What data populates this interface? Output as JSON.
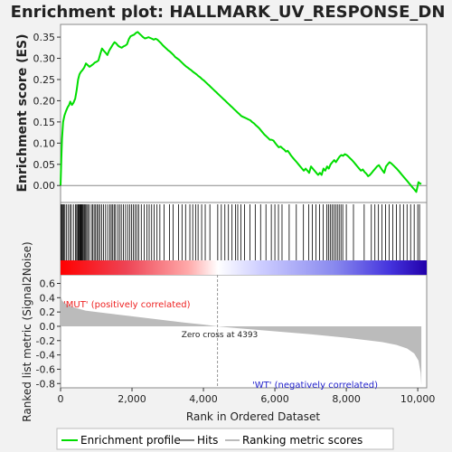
{
  "chart_data": {
    "type": "line",
    "title": "Enrichment plot: HALLMARK_UV_RESPONSE_DN",
    "xlabel": "Rank in Ordered Dataset",
    "es_panel": {
      "ylabel": "Enrichment score (ES)",
      "ylim": [
        -0.04,
        0.38
      ],
      "yticks": [
        0.0,
        0.05,
        0.1,
        0.15,
        0.2,
        0.25,
        0.3,
        0.35
      ],
      "series_name": "Enrichment profile",
      "line_color": "#00dd00",
      "points": [
        [
          0,
          0.0
        ],
        [
          20,
          0.06
        ],
        [
          40,
          0.11
        ],
        [
          70,
          0.15
        ],
        [
          110,
          0.165
        ],
        [
          150,
          0.175
        ],
        [
          200,
          0.185
        ],
        [
          240,
          0.19
        ],
        [
          270,
          0.198
        ],
        [
          320,
          0.19
        ],
        [
          360,
          0.195
        ],
        [
          410,
          0.205
        ],
        [
          450,
          0.225
        ],
        [
          490,
          0.25
        ],
        [
          530,
          0.262
        ],
        [
          570,
          0.268
        ],
        [
          610,
          0.272
        ],
        [
          660,
          0.278
        ],
        [
          710,
          0.288
        ],
        [
          760,
          0.284
        ],
        [
          810,
          0.28
        ],
        [
          860,
          0.283
        ],
        [
          910,
          0.286
        ],
        [
          960,
          0.29
        ],
        [
          1010,
          0.292
        ],
        [
          1060,
          0.295
        ],
        [
          1110,
          0.31
        ],
        [
          1160,
          0.323
        ],
        [
          1210,
          0.318
        ],
        [
          1260,
          0.313
        ],
        [
          1310,
          0.308
        ],
        [
          1360,
          0.318
        ],
        [
          1410,
          0.325
        ],
        [
          1460,
          0.332
        ],
        [
          1510,
          0.338
        ],
        [
          1560,
          0.335
        ],
        [
          1610,
          0.33
        ],
        [
          1660,
          0.327
        ],
        [
          1710,
          0.325
        ],
        [
          1760,
          0.328
        ],
        [
          1810,
          0.33
        ],
        [
          1860,
          0.333
        ],
        [
          1910,
          0.345
        ],
        [
          1960,
          0.352
        ],
        [
          2010,
          0.354
        ],
        [
          2060,
          0.356
        ],
        [
          2110,
          0.36
        ],
        [
          2160,
          0.362
        ],
        [
          2210,
          0.358
        ],
        [
          2260,
          0.354
        ],
        [
          2310,
          0.35
        ],
        [
          2360,
          0.347
        ],
        [
          2410,
          0.348
        ],
        [
          2460,
          0.35
        ],
        [
          2510,
          0.348
        ],
        [
          2560,
          0.346
        ],
        [
          2610,
          0.344
        ],
        [
          2660,
          0.346
        ],
        [
          2710,
          0.344
        ],
        [
          2760,
          0.34
        ],
        [
          2810,
          0.336
        ],
        [
          2860,
          0.331
        ],
        [
          2910,
          0.327
        ],
        [
          2960,
          0.323
        ],
        [
          3010,
          0.319
        ],
        [
          3060,
          0.316
        ],
        [
          3110,
          0.312
        ],
        [
          3160,
          0.308
        ],
        [
          3210,
          0.303
        ],
        [
          3260,
          0.3
        ],
        [
          3310,
          0.297
        ],
        [
          3360,
          0.293
        ],
        [
          3410,
          0.289
        ],
        [
          3460,
          0.285
        ],
        [
          3510,
          0.281
        ],
        [
          3560,
          0.278
        ],
        [
          3610,
          0.275
        ],
        [
          3660,
          0.272
        ],
        [
          3710,
          0.268
        ],
        [
          3760,
          0.265
        ],
        [
          3810,
          0.262
        ],
        [
          3860,
          0.258
        ],
        [
          3910,
          0.255
        ],
        [
          3960,
          0.251
        ],
        [
          4010,
          0.248
        ],
        [
          4060,
          0.244
        ],
        [
          4110,
          0.24
        ],
        [
          4160,
          0.236
        ],
        [
          4210,
          0.232
        ],
        [
          4260,
          0.228
        ],
        [
          4310,
          0.224
        ],
        [
          4360,
          0.22
        ],
        [
          4410,
          0.216
        ],
        [
          4460,
          0.212
        ],
        [
          4510,
          0.208
        ],
        [
          4560,
          0.204
        ],
        [
          4610,
          0.2
        ],
        [
          4660,
          0.196
        ],
        [
          4710,
          0.192
        ],
        [
          4760,
          0.188
        ],
        [
          4810,
          0.184
        ],
        [
          4860,
          0.18
        ],
        [
          4910,
          0.176
        ],
        [
          4960,
          0.172
        ],
        [
          5010,
          0.168
        ],
        [
          5060,
          0.164
        ],
        [
          5110,
          0.162
        ],
        [
          5160,
          0.16
        ],
        [
          5210,
          0.158
        ],
        [
          5260,
          0.156
        ],
        [
          5310,
          0.154
        ],
        [
          5360,
          0.15
        ],
        [
          5410,
          0.147
        ],
        [
          5460,
          0.143
        ],
        [
          5510,
          0.139
        ],
        [
          5560,
          0.135
        ],
        [
          5610,
          0.13
        ],
        [
          5660,
          0.125
        ],
        [
          5710,
          0.12
        ],
        [
          5760,
          0.116
        ],
        [
          5810,
          0.112
        ],
        [
          5860,
          0.108
        ],
        [
          5910,
          0.108
        ],
        [
          5960,
          0.106
        ],
        [
          6010,
          0.1
        ],
        [
          6060,
          0.095
        ],
        [
          6110,
          0.09
        ],
        [
          6160,
          0.092
        ],
        [
          6210,
          0.088
        ],
        [
          6260,
          0.085
        ],
        [
          6310,
          0.08
        ],
        [
          6360,
          0.082
        ],
        [
          6410,
          0.076
        ],
        [
          6460,
          0.07
        ],
        [
          6510,
          0.065
        ],
        [
          6560,
          0.06
        ],
        [
          6610,
          0.055
        ],
        [
          6660,
          0.05
        ],
        [
          6710,
          0.045
        ],
        [
          6760,
          0.04
        ],
        [
          6810,
          0.035
        ],
        [
          6860,
          0.04
        ],
        [
          6910,
          0.035
        ],
        [
          6960,
          0.03
        ],
        [
          7010,
          0.045
        ],
        [
          7060,
          0.04
        ],
        [
          7110,
          0.035
        ],
        [
          7160,
          0.03
        ],
        [
          7210,
          0.025
        ],
        [
          7260,
          0.03
        ],
        [
          7310,
          0.025
        ],
        [
          7360,
          0.04
        ],
        [
          7410,
          0.035
        ],
        [
          7460,
          0.045
        ],
        [
          7510,
          0.04
        ],
        [
          7560,
          0.05
        ],
        [
          7610,
          0.055
        ],
        [
          7660,
          0.06
        ],
        [
          7710,
          0.055
        ],
        [
          7760,
          0.062
        ],
        [
          7810,
          0.068
        ],
        [
          7860,
          0.072
        ],
        [
          7910,
          0.07
        ],
        [
          7960,
          0.074
        ],
        [
          8010,
          0.072
        ],
        [
          8060,
          0.068
        ],
        [
          8110,
          0.064
        ],
        [
          8160,
          0.06
        ],
        [
          8210,
          0.055
        ],
        [
          8260,
          0.05
        ],
        [
          8310,
          0.045
        ],
        [
          8360,
          0.04
        ],
        [
          8410,
          0.035
        ],
        [
          8460,
          0.038
        ],
        [
          8510,
          0.032
        ],
        [
          8560,
          0.028
        ],
        [
          8610,
          0.022
        ],
        [
          8660,
          0.025
        ],
        [
          8710,
          0.03
        ],
        [
          8760,
          0.035
        ],
        [
          8810,
          0.04
        ],
        [
          8860,
          0.045
        ],
        [
          8910,
          0.048
        ],
        [
          8960,
          0.042
        ],
        [
          9010,
          0.036
        ],
        [
          9060,
          0.03
        ],
        [
          9110,
          0.045
        ],
        [
          9160,
          0.05
        ],
        [
          9210,
          0.055
        ],
        [
          9260,
          0.052
        ],
        [
          9310,
          0.048
        ],
        [
          9360,
          0.044
        ],
        [
          9410,
          0.04
        ],
        [
          9460,
          0.035
        ],
        [
          9510,
          0.03
        ],
        [
          9560,
          0.025
        ],
        [
          9610,
          0.02
        ],
        [
          9660,
          0.015
        ],
        [
          9710,
          0.01
        ],
        [
          9760,
          0.005
        ],
        [
          9810,
          0.0
        ],
        [
          9860,
          -0.005
        ],
        [
          9910,
          -0.01
        ],
        [
          9960,
          -0.015
        ],
        [
          10000,
          0.0
        ],
        [
          10020,
          0.008
        ],
        [
          10060,
          0.005
        ],
        [
          10100,
          0.004
        ]
      ]
    },
    "hits_panel": {
      "series_name": "Hits",
      "hit_ranks": [
        15,
        35,
        60,
        90,
        120,
        160,
        210,
        260,
        300,
        360,
        420,
        450,
        480,
        500,
        520,
        540,
        560,
        580,
        600,
        620,
        640,
        670,
        700,
        730,
        760,
        800,
        860,
        900,
        940,
        980,
        1020,
        1060,
        1100,
        1150,
        1200,
        1260,
        1320,
        1380,
        1420,
        1460,
        1500,
        1540,
        1600,
        1650,
        1700,
        1760,
        1820,
        1880,
        1940,
        1990,
        2040,
        2090,
        2140,
        2190,
        2260,
        2340,
        2420,
        2480,
        2550,
        2620,
        2700,
        2780,
        2900,
        3050,
        3150,
        3300,
        3400,
        3500,
        3620,
        3700,
        3780,
        3850,
        3950,
        4050,
        4180,
        4400,
        4500,
        4600,
        4700,
        4800,
        4900,
        4960,
        5050,
        5150,
        5300,
        5450,
        5600,
        5750,
        5900,
        6000,
        6100,
        6200,
        6400,
        6600,
        6800,
        6950,
        7050,
        7150,
        7250,
        7350,
        7450,
        7500,
        7550,
        7600,
        7650,
        7700,
        7750,
        7800,
        7850,
        7900,
        8000,
        8200,
        8500,
        8700,
        8800,
        8900,
        9000,
        9100,
        9200,
        9300,
        9400,
        9500,
        9600,
        9700,
        9800,
        9900,
        10000,
        10050
      ]
    },
    "metric_panel": {
      "ylabel": "Ranked list metric (Signal2Noise)",
      "ylim": [
        -0.86,
        0.72
      ],
      "yticks": [
        -0.8,
        -0.6,
        -0.4,
        -0.2,
        0.0,
        0.2,
        0.4,
        0.6
      ],
      "series_name": "Ranking metric scores",
      "zero_cross_rank": 4393,
      "zero_cross_text": "Zero cross at 4393",
      "positive_label": "'MUT' (positively correlated)",
      "negative_label": "'WT' (negatively correlated)",
      "profile": [
        [
          0,
          0.55
        ],
        [
          10,
          0.42
        ],
        [
          40,
          0.36
        ],
        [
          100,
          0.33
        ],
        [
          200,
          0.3
        ],
        [
          400,
          0.26
        ],
        [
          700,
          0.22
        ],
        [
          1000,
          0.2
        ],
        [
          1500,
          0.17
        ],
        [
          2000,
          0.14
        ],
        [
          2500,
          0.11
        ],
        [
          3000,
          0.08
        ],
        [
          3500,
          0.05
        ],
        [
          4000,
          0.025
        ],
        [
          4393,
          0.0
        ],
        [
          5000,
          -0.03
        ],
        [
          6000,
          -0.07
        ],
        [
          7000,
          -0.11
        ],
        [
          8000,
          -0.16
        ],
        [
          8500,
          -0.19
        ],
        [
          9000,
          -0.22
        ],
        [
          9400,
          -0.26
        ],
        [
          9700,
          -0.31
        ],
        [
          9900,
          -0.38
        ],
        [
          10020,
          -0.48
        ],
        [
          10080,
          -0.65
        ],
        [
          10100,
          -0.82
        ]
      ]
    },
    "x_axis": {
      "xlim": [
        0,
        10250
      ],
      "xticks": [
        0,
        2000,
        4000,
        6000,
        8000,
        10000
      ],
      "tick_labels": [
        "0",
        "2,000",
        "4,000",
        "6,000",
        "8,000",
        "10,000"
      ],
      "n_genes": 10100
    },
    "legend": {
      "placement": "bottom",
      "entries": [
        {
          "name": "Enrichment profile",
          "color": "#00dd00"
        },
        {
          "name": "Hits",
          "color": "#000000"
        },
        {
          "name": "Ranking metric scores",
          "color": "#bbbbbb"
        }
      ]
    },
    "colors": {
      "positive": "#dd1111",
      "negative": "#2222dd",
      "neutral": "#ffffff",
      "metric_fill": "#bbbbbb",
      "positive_text": "#ee2222",
      "negative_text": "#2222cc"
    },
    "grid": false
  }
}
